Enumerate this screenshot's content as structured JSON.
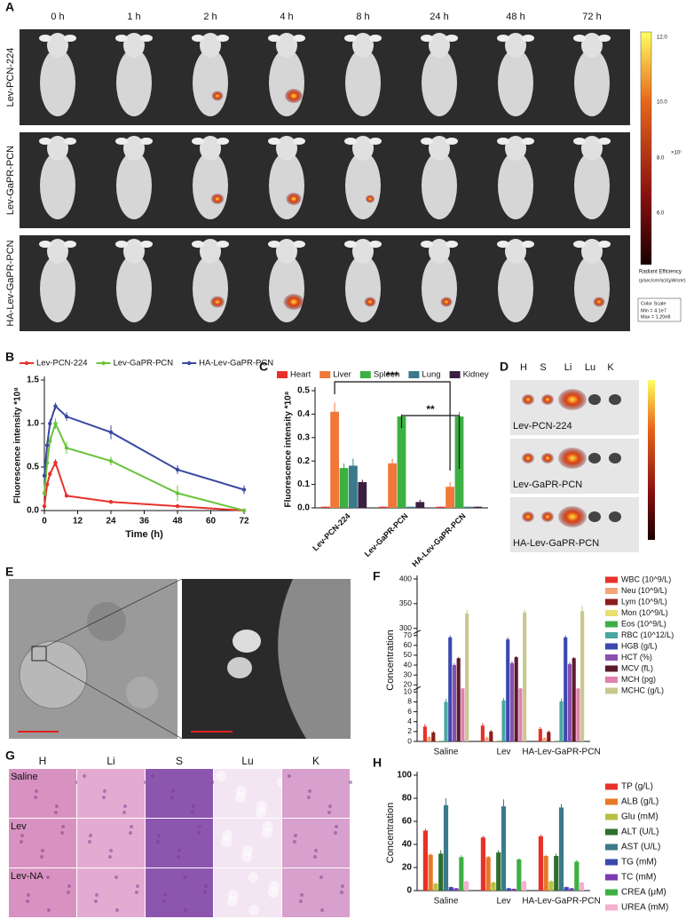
{
  "figure_a": {
    "label": "A",
    "times": [
      "0 h",
      "1 h",
      "2 h",
      "4 h",
      "8 h",
      "24 h",
      "48 h",
      "72 h"
    ],
    "rows": [
      "Lev-PCN-224",
      "Lev-GaPR-PCN",
      "HA-Lev-GaPR-PCN"
    ],
    "colorbar": {
      "ticks": [
        "12.0",
        "10.0",
        "8.0",
        "6.0"
      ],
      "unit": "×10⁷",
      "title": "Radiant Efficiency",
      "units": "(p/sec/cm²/sr)/(μW/cm²)",
      "scale_title": "Color Scale",
      "min": "Min = 4.1e7",
      "max": "Max = 1.20e8"
    }
  },
  "figure_d": {
    "label": "D",
    "organs": [
      "H",
      "S",
      "Li",
      "Lu",
      "K"
    ],
    "rows": [
      "Lev-PCN-224",
      "Lev-GaPR-PCN",
      "HA-Lev-GaPR-PCN"
    ]
  },
  "figure_e": {
    "label": "E"
  },
  "figure_g": {
    "label": "G",
    "organs": [
      "H",
      "Li",
      "S",
      "Lu",
      "K"
    ],
    "rows": [
      "Saline",
      "Lev",
      "Lev-NA"
    ]
  },
  "chart_data": [
    {
      "panel_label": "B",
      "type": "line",
      "x": [
        0,
        1,
        2,
        4,
        8,
        24,
        48,
        72
      ],
      "xlim": [
        0,
        72
      ],
      "xticks": [
        0,
        12,
        24,
        36,
        48,
        60,
        72
      ],
      "ylim": [
        0,
        1.5
      ],
      "yticks": [
        {
          "value": 0,
          "label": "0.0"
        },
        0.5,
        {
          "value": 1,
          "label": "1.0"
        },
        1.5
      ],
      "xlabel": "Time (h)",
      "ylabel": "Fluorescence intensity *10⁸",
      "series": [
        {
          "name": "Lev-PCN-224",
          "color": "#e8312a",
          "values": [
            0.05,
            0.3,
            0.42,
            0.55,
            0.17,
            0.1,
            0.05,
            0.0
          ],
          "errors": [
            0.02,
            0.03,
            0.03,
            0.04,
            0.02,
            0.01,
            0.01,
            0.0
          ]
        },
        {
          "name": "Lev-GaPR-PCN",
          "color": "#6ac43a",
          "values": [
            0.2,
            0.55,
            0.8,
            1.0,
            0.72,
            0.57,
            0.2,
            0.0
          ],
          "errors": [
            0.03,
            0.05,
            0.05,
            0.06,
            0.07,
            0.05,
            0.09,
            0.02
          ]
        },
        {
          "name": "HA-Lev-GaPR-PCN",
          "color": "#3a49a0",
          "values": [
            0.4,
            0.75,
            1.0,
            1.2,
            1.08,
            0.9,
            0.47,
            0.24
          ],
          "errors": [
            0.03,
            0.05,
            0.05,
            0.04,
            0.05,
            0.08,
            0.05,
            0.05
          ]
        }
      ]
    },
    {
      "panel_label": "C",
      "type": "bar",
      "categories": [
        "Lev-PCN-224",
        "Lev-GaPR-PCN",
        "HA-Lev-GaPR-PCN"
      ],
      "ylim": [
        0,
        0.5
      ],
      "yticks": [
        {
          "value": 0,
          "label": "0.0"
        },
        0.1,
        0.2,
        0.3,
        0.4,
        0.5
      ],
      "ylabel": "Fluorescence intensity *10⁸",
      "annotations": [
        "***",
        "**"
      ],
      "series": [
        {
          "name": "Heart",
          "color": "#e8312a",
          "values": [
            0.005,
            0.005,
            0.005
          ],
          "errors": [
            0.001,
            0.001,
            0.001
          ]
        },
        {
          "name": "Liver",
          "color": "#f07838",
          "values": [
            0.41,
            0.19,
            0.09
          ],
          "errors": [
            0.04,
            0.02,
            0.02
          ]
        },
        {
          "name": "Spleen",
          "color": "#3cb043",
          "values": [
            0.17,
            0.39,
            0.39
          ],
          "errors": [
            0.02,
            0.01,
            0.02
          ]
        },
        {
          "name": "Lung",
          "color": "#3a7a8a",
          "values": [
            0.18,
            0.005,
            0.005
          ],
          "errors": [
            0.03,
            0.001,
            0.001
          ]
        },
        {
          "name": "Kidney",
          "color": "#3a2040",
          "values": [
            0.11,
            0.025,
            0.005
          ],
          "errors": [
            0.01,
            0.01,
            0.001
          ]
        }
      ]
    },
    {
      "panel_label": "F",
      "type": "bar",
      "categories": [
        "Saline",
        "Lev",
        "HA-Lev-GaPR-PCN"
      ],
      "ylim": [
        0,
        400
      ],
      "y_segments": [
        [
          0,
          10
        ],
        [
          20,
          70
        ],
        [
          300,
          400
        ]
      ],
      "yticks": [
        0,
        2,
        4,
        6,
        8,
        10,
        20,
        30,
        40,
        50,
        60,
        70,
        300,
        350,
        400
      ],
      "ylabel": "Concentration",
      "series": [
        {
          "name": "WBC (10^9/L)",
          "color": "#e8312a",
          "values": [
            3,
            3.2,
            2.5
          ],
          "errors": [
            0.5,
            0.5,
            0.4
          ]
        },
        {
          "name": "Neu (10^9/L)",
          "color": "#f4a57a",
          "values": [
            0.9,
            0.8,
            0.7
          ],
          "errors": [
            0.2,
            0.2,
            0.2
          ]
        },
        {
          "name": "Lym (10^9/L)",
          "color": "#8b1c1c",
          "values": [
            1.8,
            2.0,
            1.9
          ],
          "errors": [
            0.3,
            0.3,
            0.3
          ]
        },
        {
          "name": "Mon (10^9/L)",
          "color": "#e8e070",
          "values": [
            0.1,
            0.1,
            0.1
          ],
          "errors": [
            0.02,
            0.02,
            0.02
          ]
        },
        {
          "name": "Eos (10^9/L)",
          "color": "#3cb043",
          "values": [
            0.1,
            0.1,
            0.1
          ],
          "errors": [
            0.02,
            0.02,
            0.02
          ]
        },
        {
          "name": "RBC (10^12/L)",
          "color": "#4aa6a0",
          "values": [
            8,
            8.3,
            8.1
          ],
          "errors": [
            0.6,
            0.5,
            0.6
          ]
        },
        {
          "name": "HGB (g/L)",
          "color": "#3a49b0",
          "values": [
            68,
            66,
            68
          ],
          "errors": [
            2,
            2,
            2
          ]
        },
        {
          "name": "HCT (%)",
          "color": "#8a4fb0",
          "values": [
            40,
            42,
            41
          ],
          "errors": [
            2,
            2,
            2
          ]
        },
        {
          "name": "MCV (fL)",
          "color": "#5a1a2a",
          "values": [
            47,
            48,
            47
          ],
          "errors": [
            1,
            1,
            1
          ]
        },
        {
          "name": "MCH (pg)",
          "color": "#e080b0",
          "values": [
            15,
            15,
            15
          ],
          "errors": [
            0.5,
            0.5,
            0.5
          ]
        },
        {
          "name": "MCHC (g/L)",
          "color": "#c8c890",
          "values": [
            330,
            332,
            335
          ],
          "errors": [
            8,
            6,
            10
          ]
        }
      ]
    },
    {
      "panel_label": "H",
      "type": "bar",
      "categories": [
        "Saline",
        "Lev",
        "HA-Lev-GaPR-PCN"
      ],
      "ylim": [
        0,
        100
      ],
      "yticks": [
        0,
        20,
        40,
        60,
        80,
        100
      ],
      "ylabel": "Concentration",
      "series": [
        {
          "name": "TP (g/L)",
          "color": "#e8312a",
          "values": [
            52,
            46,
            47
          ],
          "errors": [
            1.5,
            1.5,
            1.5
          ]
        },
        {
          "name": "ALB (g/L)",
          "color": "#e8782a",
          "values": [
            31,
            29,
            30
          ],
          "errors": [
            1.2,
            1,
            1
          ]
        },
        {
          "name": "Glu (mM)",
          "color": "#b8c040",
          "values": [
            6,
            7,
            8
          ],
          "errors": [
            0.8,
            1,
            1
          ]
        },
        {
          "name": "ALT (U/L)",
          "color": "#2e6e2e",
          "values": [
            32,
            33,
            30
          ],
          "errors": [
            3,
            2,
            2
          ]
        },
        {
          "name": "AST (U/L)",
          "color": "#3a7a8a",
          "values": [
            74,
            73,
            72
          ],
          "errors": [
            6,
            6,
            3
          ]
        },
        {
          "name": "TG (mM)",
          "color": "#3a49b0",
          "values": [
            3,
            2,
            3
          ],
          "errors": [
            0.5,
            0.4,
            0.5
          ]
        },
        {
          "name": "TC (mM)",
          "color": "#7a3ab0",
          "values": [
            2,
            1.5,
            2
          ],
          "errors": [
            0.3,
            0.3,
            0.3
          ]
        },
        {
          "name": "CREA (μM)",
          "color": "#3cb043",
          "values": [
            29,
            27,
            25
          ],
          "errors": [
            1.5,
            1,
            1.5
          ]
        },
        {
          "name": "UREA (mM)",
          "color": "#f4b0d0",
          "values": [
            8,
            8,
            7
          ],
          "errors": [
            0.5,
            0.5,
            0.5
          ]
        }
      ]
    }
  ]
}
